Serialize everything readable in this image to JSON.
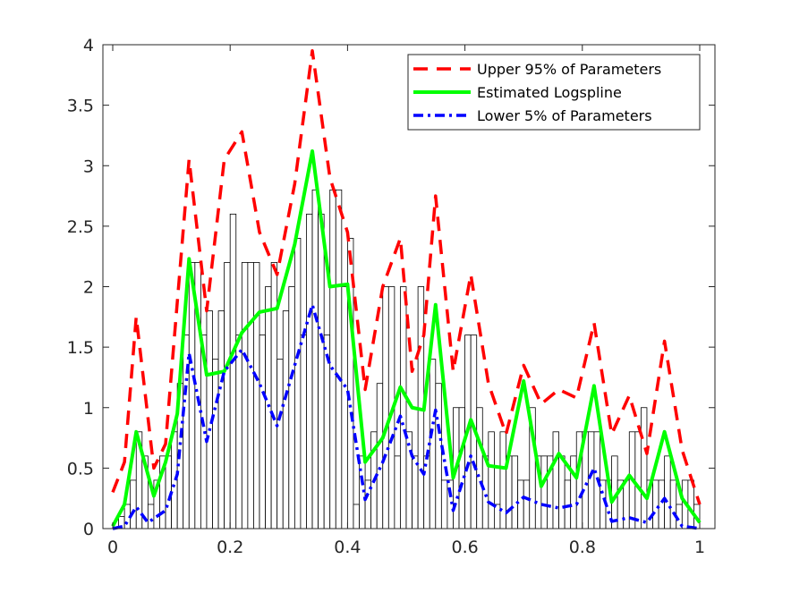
{
  "chart_data": {
    "type": "line",
    "title": "",
    "xlabel": "",
    "ylabel": "",
    "xlim": [
      0,
      1
    ],
    "ylim": [
      0,
      4
    ],
    "grid": false,
    "legend_position": "top-right",
    "x_ticks": [
      0,
      0.2,
      0.4,
      0.6,
      0.8,
      1
    ],
    "x_tick_labels": [
      "0",
      "0.2",
      "0.4",
      "0.6",
      "0.8",
      "1"
    ],
    "y_ticks": [
      0,
      0.5,
      1,
      1.5,
      2,
      2.5,
      3,
      3.5,
      4
    ],
    "y_tick_labels": [
      "0",
      "0.5",
      "1",
      "1.5",
      "2",
      "2.5",
      "3",
      "3.5",
      "4"
    ],
    "histogram": {
      "bin_edges_start": 0.0,
      "bin_width": 0.01,
      "heights": [
        0,
        0.1,
        0.2,
        0.4,
        0.8,
        0.6,
        0.2,
        0.4,
        0.6,
        0.6,
        0.8,
        1.2,
        1.6,
        2.2,
        2.2,
        1.6,
        1.8,
        1.4,
        1.8,
        2.2,
        2.6,
        1.6,
        2.2,
        2.2,
        2.2,
        1.6,
        2.0,
        2.2,
        1.4,
        1.8,
        2.0,
        2.4,
        1.6,
        2.6,
        2.8,
        2.6,
        1.6,
        2.8,
        2.8,
        2.0,
        2.4,
        0.2,
        0.6,
        0.4,
        0.8,
        1.2,
        2.0,
        2.0,
        0.6,
        2.0,
        0.8,
        0.6,
        2.0,
        0.6,
        1.4,
        1.2,
        0.4,
        0.4,
        1.0,
        1.0,
        1.6,
        1.6,
        1.0,
        0.6,
        0.8,
        0.2,
        0.8,
        0.6,
        0.6,
        0.4,
        0.4,
        1.0,
        0.6,
        0.6,
        0.6,
        0.8,
        0.6,
        0.4,
        0.6,
        0.8,
        0.8,
        0.8,
        0.8,
        0.4,
        0.4,
        0.6,
        0.4,
        0.4,
        0.8,
        0.8,
        1.0,
        0.4,
        0.4,
        0.4,
        0.6,
        0.4,
        0.2,
        0.4,
        0.4,
        0.2
      ],
      "stroke": "#000000",
      "fill": "#ffffff"
    },
    "series": [
      {
        "name": "Upper 95% of Parameters",
        "color": "#ff0000",
        "style": "dashed",
        "x": [
          0,
          0.02,
          0.04,
          0.07,
          0.09,
          0.13,
          0.16,
          0.19,
          0.22,
          0.25,
          0.28,
          0.31,
          0.34,
          0.37,
          0.4,
          0.43,
          0.46,
          0.49,
          0.51,
          0.53,
          0.55,
          0.58,
          0.61,
          0.64,
          0.67,
          0.7,
          0.73,
          0.76,
          0.79,
          0.82,
          0.85,
          0.88,
          0.91,
          0.94,
          0.97,
          1.0
        ],
        "y": [
          0.3,
          0.55,
          1.75,
          0.5,
          0.7,
          3.05,
          1.8,
          3.05,
          3.28,
          2.45,
          2.1,
          2.85,
          3.95,
          2.9,
          2.45,
          1.15,
          2.0,
          2.4,
          1.3,
          1.6,
          2.75,
          1.3,
          2.1,
          1.2,
          0.78,
          1.35,
          1.03,
          1.15,
          1.08,
          1.7,
          0.78,
          1.1,
          0.62,
          1.55,
          0.65,
          0.2
        ]
      },
      {
        "name": "Estimated Logspline",
        "color": "#00ff00",
        "style": "solid",
        "x": [
          0,
          0.02,
          0.04,
          0.07,
          0.09,
          0.11,
          0.13,
          0.16,
          0.19,
          0.22,
          0.25,
          0.28,
          0.31,
          0.34,
          0.37,
          0.4,
          0.43,
          0.46,
          0.49,
          0.51,
          0.53,
          0.55,
          0.58,
          0.61,
          0.64,
          0.67,
          0.7,
          0.73,
          0.76,
          0.79,
          0.82,
          0.85,
          0.88,
          0.91,
          0.94,
          0.97,
          1.0
        ],
        "y": [
          0.02,
          0.2,
          0.8,
          0.27,
          0.55,
          0.95,
          2.23,
          1.27,
          1.3,
          1.62,
          1.79,
          1.82,
          2.35,
          3.12,
          2.0,
          2.02,
          0.55,
          0.75,
          1.17,
          1.0,
          0.98,
          1.85,
          0.42,
          0.9,
          0.52,
          0.5,
          1.22,
          0.35,
          0.62,
          0.42,
          1.18,
          0.22,
          0.44,
          0.25,
          0.8,
          0.25,
          0.05
        ]
      },
      {
        "name": "Lower 5% of Parameters",
        "color": "#0000ff",
        "style": "dashdot",
        "x": [
          0,
          0.02,
          0.04,
          0.06,
          0.09,
          0.11,
          0.13,
          0.16,
          0.19,
          0.22,
          0.25,
          0.28,
          0.31,
          0.34,
          0.37,
          0.4,
          0.43,
          0.46,
          0.49,
          0.51,
          0.53,
          0.55,
          0.58,
          0.61,
          0.64,
          0.67,
          0.7,
          0.73,
          0.76,
          0.79,
          0.82,
          0.85,
          0.88,
          0.91,
          0.94,
          0.97,
          1.0
        ],
        "y": [
          0.0,
          0.02,
          0.18,
          0.05,
          0.15,
          0.45,
          1.45,
          0.72,
          1.3,
          1.48,
          1.2,
          0.85,
          1.35,
          1.85,
          1.35,
          1.15,
          0.24,
          0.55,
          0.93,
          0.6,
          0.45,
          0.98,
          0.15,
          0.6,
          0.22,
          0.13,
          0.26,
          0.2,
          0.17,
          0.2,
          0.5,
          0.06,
          0.09,
          0.05,
          0.25,
          0.02,
          0.0
        ]
      }
    ]
  }
}
